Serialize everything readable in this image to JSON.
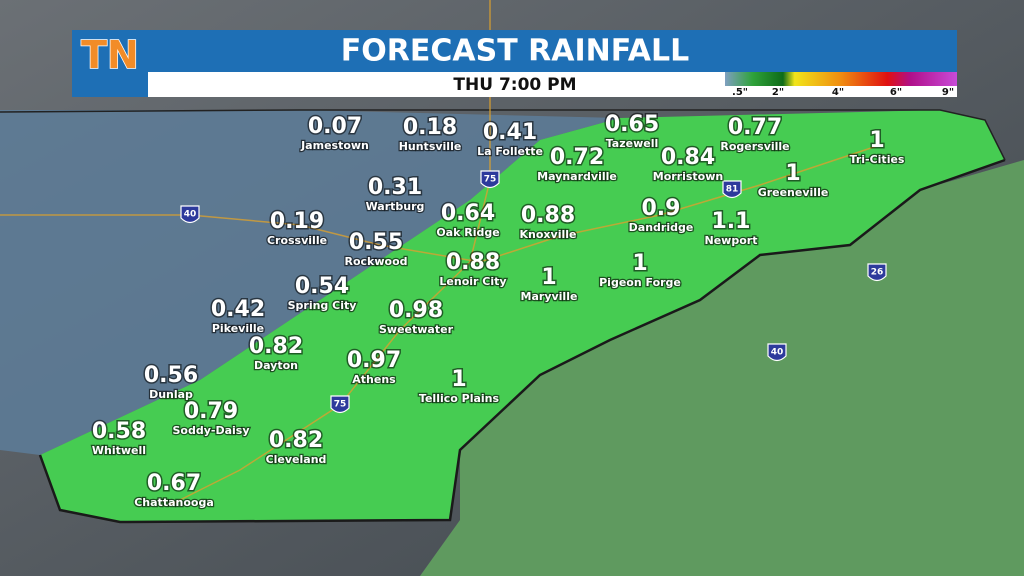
{
  "header": {
    "logo": "TN",
    "title": "FORECAST RAINFALL",
    "subtitle": "THU 7:00 PM"
  },
  "legend": {
    "labels": [
      ".5\"",
      "2\"",
      "4\"",
      "6\"",
      "9\""
    ]
  },
  "cities": [
    {
      "value": 0.07,
      "name": "Jamestown"
    },
    {
      "value": 0.18,
      "name": "Huntsville"
    },
    {
      "value": 0.41,
      "name": "La Follette"
    },
    {
      "value": 0.65,
      "name": "Tazewell"
    },
    {
      "value": 0.77,
      "name": "Rogersville"
    },
    {
      "value": 1,
      "name": "Tri-Cities"
    },
    {
      "value": 0.72,
      "name": "Maynardville"
    },
    {
      "value": 0.84,
      "name": "Morristown"
    },
    {
      "value": 1,
      "name": "Greeneville"
    },
    {
      "value": 0.31,
      "name": "Wartburg"
    },
    {
      "value": 0.64,
      "name": "Oak Ridge"
    },
    {
      "value": 0.88,
      "name": "Knoxville"
    },
    {
      "value": 0.9,
      "name": "Dandridge"
    },
    {
      "value": 1.1,
      "name": "Newport"
    },
    {
      "value": 0.19,
      "name": "Crossville"
    },
    {
      "value": 0.55,
      "name": "Rockwood"
    },
    {
      "value": 0.88,
      "name": "Lenoir City"
    },
    {
      "value": 1,
      "name": "Maryville"
    },
    {
      "value": 1,
      "name": "Pigeon Forge"
    },
    {
      "value": 0.54,
      "name": "Spring City"
    },
    {
      "value": 0.42,
      "name": "Pikeville"
    },
    {
      "value": 0.98,
      "name": "Sweetwater"
    },
    {
      "value": 0.82,
      "name": "Dayton"
    },
    {
      "value": 0.97,
      "name": "Athens"
    },
    {
      "value": 1,
      "name": "Tellico Plains"
    },
    {
      "value": 0.56,
      "name": "Dunlap"
    },
    {
      "value": 0.79,
      "name": "Soddy-Daisy"
    },
    {
      "value": 0.58,
      "name": "Whitwell"
    },
    {
      "value": 0.82,
      "name": "Cleveland"
    },
    {
      "value": 0.67,
      "name": "Chattanooga"
    }
  ],
  "interstates": [
    "40",
    "75",
    "81",
    "26",
    "40",
    "75"
  ]
}
